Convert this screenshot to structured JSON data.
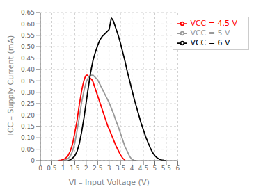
{
  "chart_data": {
    "type": "line",
    "title": "",
    "xlabel": "VI – Input Voltage (V)",
    "ylabel": "ICC – Supply Current (mA)",
    "xlim": [
      0,
      6
    ],
    "ylim": [
      0,
      0.65
    ],
    "xticks": [
      0,
      0.5,
      1,
      1.5,
      2,
      2.5,
      3,
      3.5,
      4,
      4.5,
      5,
      5.5,
      6
    ],
    "yticks": [
      0,
      0.05,
      {
        "value": 0.1,
        "label": "0.10"
      },
      0.15,
      {
        "value": 0.2,
        "label": "0.20"
      },
      0.25,
      {
        "value": 0.3,
        "label": "0.30"
      },
      0.35,
      {
        "value": 0.4,
        "label": "0.40"
      },
      0.45,
      {
        "value": 0.5,
        "label": "0.50"
      },
      0.55,
      {
        "value": 0.6,
        "label": "0.60"
      },
      0.65
    ],
    "grid": true,
    "legend": "upper right",
    "series": [
      {
        "name": "VCC = 4.5 V",
        "color": "#ff0000",
        "x": [
          0.8,
          0.9,
          1.0,
          1.1,
          1.2,
          1.3,
          1.4,
          1.5,
          1.6,
          1.65,
          1.7,
          1.75,
          1.8,
          1.85,
          1.9,
          1.95,
          2.0,
          2.05,
          2.1,
          2.15,
          2.2,
          2.25,
          2.25,
          2.3,
          2.35,
          2.4,
          2.45,
          2.5,
          2.55,
          2.6,
          2.65,
          2.7,
          2.75,
          2.8,
          2.85,
          2.9,
          2.95,
          3.0,
          3.1,
          3.2,
          3.3,
          3.4,
          3.5,
          3.6,
          3.7
        ],
        "values": [
          0.0,
          0.002,
          0.005,
          0.01,
          0.02,
          0.04,
          0.07,
          0.12,
          0.175,
          0.21,
          0.245,
          0.275,
          0.305,
          0.33,
          0.35,
          0.365,
          0.375,
          0.375,
          0.37,
          0.365,
          0.36,
          0.355,
          0.355,
          0.345,
          0.33,
          0.315,
          0.3,
          0.285,
          0.27,
          0.255,
          0.24,
          0.225,
          0.21,
          0.195,
          0.18,
          0.165,
          0.15,
          0.14,
          0.115,
          0.09,
          0.065,
          0.045,
          0.025,
          0.01,
          0.002
        ]
      },
      {
        "name": "VCC = 5 V",
        "color": "#999999",
        "x": [
          1.0,
          1.1,
          1.2,
          1.3,
          1.4,
          1.5,
          1.6,
          1.7,
          1.8,
          1.9,
          2.0,
          2.1,
          2.2,
          2.3,
          2.4,
          2.5,
          2.5,
          2.6,
          2.7,
          2.8,
          2.9,
          3.0,
          3.1,
          3.2,
          3.3,
          3.4,
          3.5,
          3.6,
          3.7,
          3.8,
          3.9,
          4.0,
          4.1,
          4.2
        ],
        "values": [
          0.0,
          0.003,
          0.008,
          0.018,
          0.04,
          0.075,
          0.13,
          0.19,
          0.255,
          0.305,
          0.345,
          0.365,
          0.375,
          0.375,
          0.365,
          0.355,
          0.355,
          0.335,
          0.315,
          0.295,
          0.275,
          0.255,
          0.23,
          0.205,
          0.175,
          0.15,
          0.12,
          0.09,
          0.06,
          0.04,
          0.018,
          0.005,
          0.001,
          0.0
        ]
      },
      {
        "name": "VCC = 6 V",
        "color": "#000000",
        "x": [
          1.2,
          1.3,
          1.4,
          1.5,
          1.6,
          1.7,
          1.8,
          1.9,
          2.0,
          2.1,
          2.2,
          2.3,
          2.4,
          2.5,
          2.6,
          2.7,
          2.8,
          2.9,
          3.0,
          3.05,
          3.1,
          3.1,
          3.15,
          3.2,
          3.3,
          3.4,
          3.5,
          3.6,
          3.7,
          3.8,
          3.9,
          4.0,
          4.1,
          4.2,
          4.3,
          4.4,
          4.5,
          4.6,
          4.7,
          4.8,
          4.9,
          5.0,
          5.1,
          5.2,
          5.3,
          5.4,
          5.5
        ],
        "values": [
          0.0,
          0.003,
          0.01,
          0.02,
          0.04,
          0.075,
          0.125,
          0.185,
          0.255,
          0.325,
          0.39,
          0.44,
          0.475,
          0.505,
          0.53,
          0.545,
          0.555,
          0.565,
          0.575,
          0.6,
          0.625,
          0.625,
          0.62,
          0.61,
          0.58,
          0.55,
          0.515,
          0.475,
          0.435,
          0.39,
          0.35,
          0.31,
          0.27,
          0.235,
          0.2,
          0.165,
          0.135,
          0.105,
          0.08,
          0.056,
          0.036,
          0.022,
          0.012,
          0.006,
          0.003,
          0.001,
          0.0
        ]
      }
    ]
  }
}
